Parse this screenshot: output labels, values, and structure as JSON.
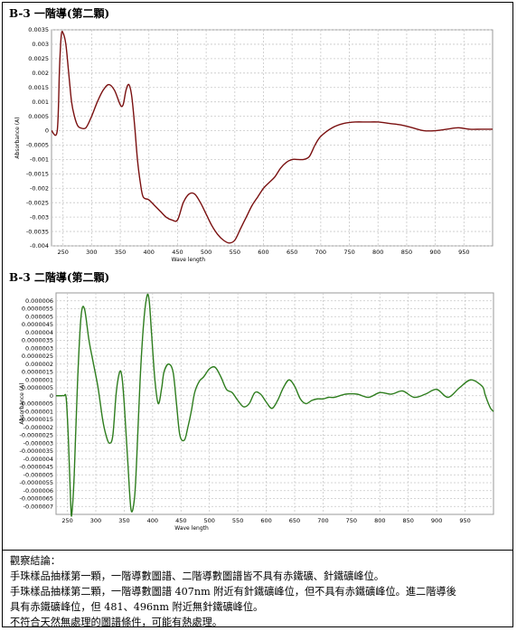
{
  "chart_data": [
    {
      "type": "line",
      "title": "B-3 一階導(第二顆)",
      "xlabel": "Wave length",
      "ylabel": "Absorbance (A)",
      "xlim": [
        230,
        1000
      ],
      "ylim": [
        -0.004,
        0.0035
      ],
      "x_ticks": [
        250,
        300,
        350,
        400,
        450,
        500,
        550,
        600,
        650,
        700,
        750,
        800,
        850,
        900,
        950
      ],
      "y_ticks": [
        "0.0035",
        "0.003",
        "0.0025",
        "0.002",
        "0.0015",
        "0.001",
        "0.0005",
        "0",
        "-0.0005",
        "-0.001",
        "-0.0015",
        "-0.002",
        "-0.0025",
        "-0.003",
        "-0.0035",
        "-0.004"
      ],
      "grid": true,
      "color": "#7a1010",
      "series": [
        {
          "x": [
            230,
            240,
            244,
            247,
            250,
            255,
            260,
            265,
            270,
            275,
            280,
            290,
            300,
            310,
            320,
            330,
            340,
            350,
            355,
            360,
            365,
            370,
            375,
            380,
            385,
            390,
            400,
            410,
            420,
            430,
            440,
            450,
            460,
            470,
            480,
            490,
            500,
            510,
            520,
            530,
            540,
            550,
            560,
            570,
            580,
            590,
            600,
            610,
            620,
            630,
            640,
            650,
            660,
            670,
            680,
            690,
            700,
            720,
            740,
            760,
            780,
            800,
            820,
            840,
            860,
            880,
            900,
            920,
            940,
            960,
            980,
            1000
          ],
          "y": [
            0,
            0,
            0.0022,
            0.0033,
            0.0034,
            0.003,
            0.002,
            0.001,
            0.0005,
            0.0002,
            0.0001,
            0.0001,
            0.0005,
            0.001,
            0.0014,
            0.0016,
            0.0014,
            0.0009,
            0.0009,
            0.0014,
            0.0016,
            0.0012,
            0.0002,
            -0.001,
            -0.0018,
            -0.0023,
            -0.0024,
            -0.0026,
            -0.0028,
            -0.003,
            -0.0031,
            -0.0031,
            -0.0025,
            -0.0022,
            -0.0022,
            -0.0025,
            -0.0029,
            -0.0033,
            -0.0036,
            -0.0038,
            -0.0039,
            -0.0038,
            -0.0034,
            -0.003,
            -0.0026,
            -0.0023,
            -0.002,
            -0.0018,
            -0.0016,
            -0.0013,
            -0.0011,
            -0.001,
            -0.001,
            -0.001,
            -0.0009,
            -0.0005,
            -0.0002,
            0.0001,
            0.00025,
            0.0003,
            0.0003,
            0.0003,
            0.00025,
            0.0002,
            0.0001,
            0.0,
            0.0,
            5e-05,
            0.0001,
            5e-05,
            5e-05,
            5e-05
          ]
        }
      ]
    },
    {
      "type": "line",
      "title": "B-3 二階導(第二顆)",
      "xlabel": "Wave length",
      "ylabel": "Absorbance (A)",
      "xlim": [
        230,
        1000
      ],
      "ylim": [
        -7.5e-06,
        6.5e-06
      ],
      "x_ticks": [
        250,
        300,
        350,
        400,
        450,
        500,
        550,
        600,
        650,
        700,
        750,
        800,
        850,
        900,
        950
      ],
      "y_ticks": [
        "0.000006",
        "0.0000055",
        "0.000005",
        "0.0000045",
        "0.000004",
        "0.0000035",
        "0.000003",
        "0.0000025",
        "0.000002",
        "0.0000015",
        "0.000001",
        "0.0000005",
        "0",
        "-0.0000005",
        "-0.000001",
        "-0.0000015",
        "-0.000002",
        "-0.0000025",
        "-0.000003",
        "-0.0000035",
        "-0.000004",
        "-0.0000045",
        "-0.000005",
        "-0.0000055",
        "-0.000006",
        "-0.0000065",
        "-0.000007"
      ],
      "grid": true,
      "color": "#2e7d1e",
      "series": [
        {
          "x": [
            230,
            240,
            244,
            248,
            252,
            256,
            258,
            262,
            268,
            274,
            280,
            288,
            296,
            304,
            312,
            318,
            324,
            330,
            336,
            342,
            346,
            350,
            356,
            362,
            368,
            372,
            378,
            384,
            390,
            394,
            398,
            404,
            410,
            416,
            420,
            428,
            436,
            442,
            448,
            456,
            462,
            468,
            474,
            482,
            490,
            500,
            510,
            520,
            530,
            540,
            550,
            560,
            570,
            580,
            590,
            600,
            610,
            620,
            630,
            640,
            650,
            660,
            670,
            680,
            690,
            700,
            710,
            720,
            740,
            760,
            780,
            800,
            820,
            840,
            860,
            880,
            900,
            920,
            940,
            960,
            980,
            985,
            990,
            995,
            1000
          ],
          "y": [
            0,
            0,
            0,
            -2e-07,
            -3e-06,
            -7e-06,
            -7.4e-06,
            -5e-06,
            1e-06,
            5e-06,
            5.5e-06,
            3.5e-06,
            2e-06,
            5e-07,
            -1.5e-06,
            -2.5e-06,
            -3e-06,
            -2.5e-06,
            2e-07,
            1.5e-06,
            1.2e-06,
            -5e-07,
            -4e-06,
            -7.2e-06,
            -6.5e-06,
            -4e-06,
            1e-06,
            4.5e-06,
            6.3e-06,
            6e-06,
            4e-06,
            1e-06,
            -5e-07,
            5e-07,
            1.5e-06,
            2e-06,
            1.5e-06,
            -5e-07,
            -2.5e-06,
            -2.8e-06,
            -2e-06,
            -1e-06,
            2e-07,
            9e-07,
            1.2e-06,
            1.7e-06,
            1.8e-06,
            1.2e-06,
            4e-07,
            2e-07,
            -3e-07,
            -7e-07,
            -5e-07,
            2e-07,
            1e-07,
            -4e-07,
            -8e-07,
            -3e-07,
            5e-07,
            1e-06,
            6e-07,
            -2e-07,
            -5e-07,
            -3e-07,
            -2e-07,
            -2e-07,
            -1e-07,
            -1e-07,
            1e-07,
            1e-07,
            -1e-07,
            2e-07,
            1e-07,
            3e-07,
            -1e-07,
            1e-07,
            4e-07,
            -1e-07,
            5e-07,
            1e-06,
            6e-07,
            1e-07,
            -4e-07,
            -8e-07,
            -1e-06
          ]
        }
      ]
    }
  ],
  "conclusion": {
    "heading": "觀察結論：",
    "lines": [
      "手珠樣品抽樣第一顆，一階導數圖譜、二階導數圖譜皆不具有赤鐵礦、針鐵礦峰位。",
      "手珠樣品抽樣第二顆，一階導數圖譜 407nm 附近有針鐵礦峰位，但不具有赤鐵礦峰位。進二階導後",
      "具有赤鐵礦峰位，但 481、496nm 附近無針鐵礦峰位。",
      "不符合天然無處理的圖譜條件，可能有熱處理。"
    ]
  }
}
